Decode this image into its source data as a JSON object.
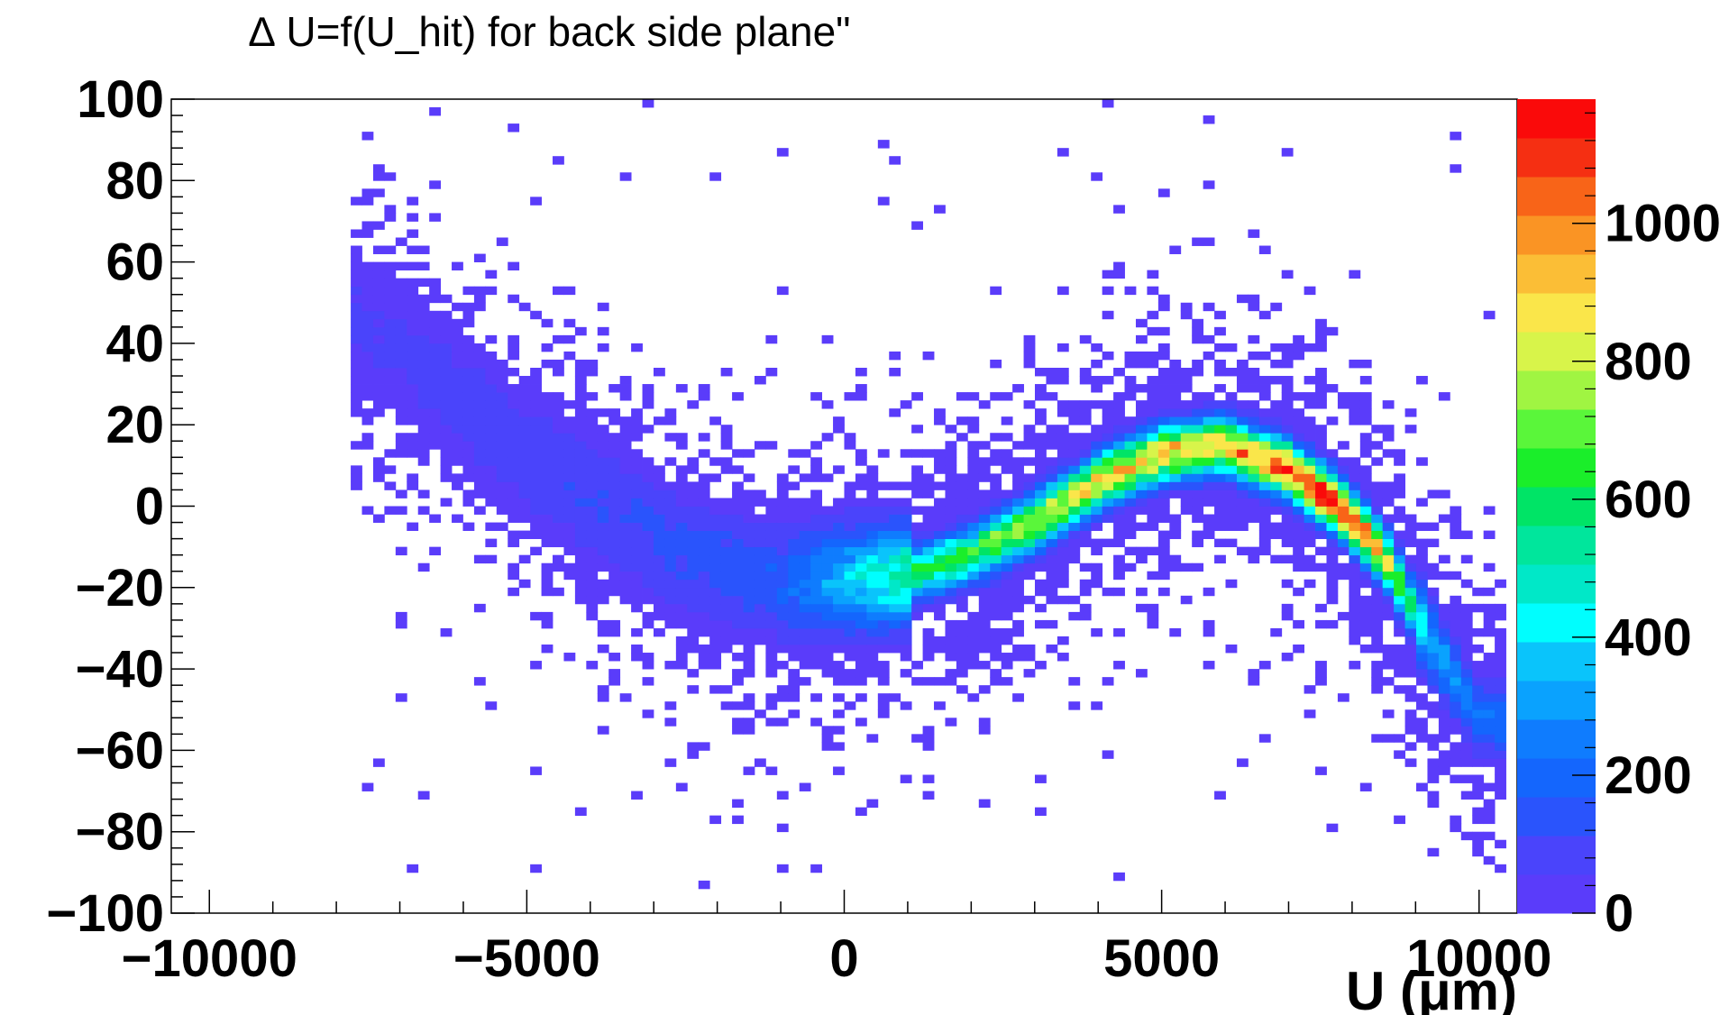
{
  "chart_data": {
    "type": "heatmap",
    "title": "∆ U=f(U_hit) for back side plane\"",
    "xlabel": "U (μm)",
    "ylabel": "",
    "xlim": [
      -10600,
      10600
    ],
    "ylim": [
      -100,
      100
    ],
    "x_ticks": [
      "−10000",
      "−5000",
      "0",
      "5000",
      "10000"
    ],
    "y_ticks": [
      "−100",
      "−80",
      "−60",
      "−40",
      "−20",
      "0",
      "20",
      "40",
      "60",
      "80",
      "100"
    ],
    "z_ticks": [
      "0",
      "200",
      "400",
      "600",
      "800",
      "1000"
    ],
    "zlim": [
      0,
      1180
    ],
    "palette": [
      "#5a3cfa",
      "#4a44fb",
      "#2a54fc",
      "#1466fd",
      "#0f7cfe",
      "#0aa2fe",
      "#0ac4fb",
      "#00fefe",
      "#00e8c8",
      "#00e69c",
      "#00e466",
      "#1aee2a",
      "#5af63a",
      "#a0f542",
      "#d8f44a",
      "#fae64a",
      "#fbbe36",
      "#fa9424",
      "#f86418",
      "#f52f12",
      "#fa0a0a"
    ],
    "ridge": {
      "x": [
        -7500,
        -5000,
        -2500,
        -1000,
        1000,
        2000,
        3000,
        4000,
        5000,
        6000,
        7000,
        7800,
        8500,
        9200,
        10000
      ],
      "y": [
        45,
        12,
        -12,
        -19,
        -17,
        -12,
        -4,
        6,
        13,
        15,
        9,
        0,
        -12,
        -32,
        -52
      ],
      "peak_counts": [
        60,
        90,
        130,
        170,
        550,
        650,
        800,
        880,
        900,
        920,
        1060,
        1150,
        900,
        330,
        220
      ]
    }
  }
}
